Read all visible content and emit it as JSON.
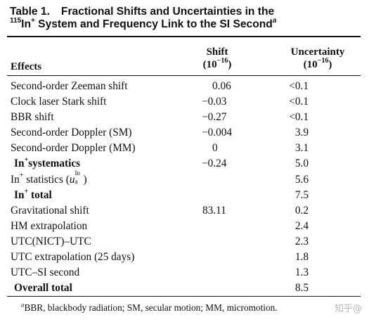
{
  "caption": {
    "label": "Table 1.",
    "title_line1": "Fractional Shifts and Uncertainties in the",
    "isotope_mass": "115",
    "ion": "In",
    "charge": "+",
    "title_line2_rest": " System and Frequency Link to the SI Second",
    "note_marker": "a"
  },
  "header": {
    "effects": "Effects",
    "shift": "Shift",
    "shift_unit": "(10",
    "shift_exp": "−16",
    "uncertainty": "Uncertainty",
    "unc_unit": "(10",
    "unc_exp": "−16",
    "close_paren": ")"
  },
  "rows": [
    {
      "effect": "Second-order Zeeman shift",
      "shift": "0.06",
      "uncertainty": "<0.1"
    },
    {
      "effect": "Clock laser Stark shift",
      "shift": "−0.03",
      "uncertainty": "<0.1"
    },
    {
      "effect": "BBR shift",
      "shift": "−0.27",
      "uncertainty": "<0.1"
    },
    {
      "effect": "Second-order Doppler (SM)",
      "shift": "−0.004",
      "uncertainty": "3.9"
    },
    {
      "effect": "Second-order Doppler (MM)",
      "shift": "0",
      "uncertainty": "3.1"
    },
    {
      "effect_prefix": "In",
      "effect_sup": "+",
      "effect_suffix": "systematics",
      "shift": "−0.24",
      "uncertainty": "5.0"
    },
    {
      "effect_prefix": "In",
      "effect_sup": "+",
      "effect_suffix": " statistics (",
      "ua_sym": "u",
      "ua_sup": "In",
      "ua_sub": "a",
      "effect_close": ")",
      "shift": "",
      "uncertainty": "5.6"
    },
    {
      "effect_prefix": "In",
      "effect_sup": "+",
      "effect_suffix": " total",
      "shift": "",
      "uncertainty": "7.5"
    },
    {
      "effect": "Gravitational shift",
      "shift": "83.11",
      "uncertainty": "0.2"
    },
    {
      "effect": "HM extrapolation",
      "shift": "",
      "uncertainty": "2.4"
    },
    {
      "effect": "UTC(NICT)–UTC",
      "shift": "",
      "uncertainty": "2.3"
    },
    {
      "effect": "UTC extrapolation (25 days)",
      "shift": "",
      "uncertainty": "1.8"
    },
    {
      "effect": "UTC–SI second",
      "shift": "",
      "uncertainty": "1.3"
    },
    {
      "effect": "Overall total",
      "shift": "",
      "uncertainty": "8.5"
    }
  ],
  "footnote": {
    "marker": "a",
    "text": "BBR, blackbody radiation; SM, secular motion; MM, micromotion."
  },
  "watermark": "知乎@"
}
